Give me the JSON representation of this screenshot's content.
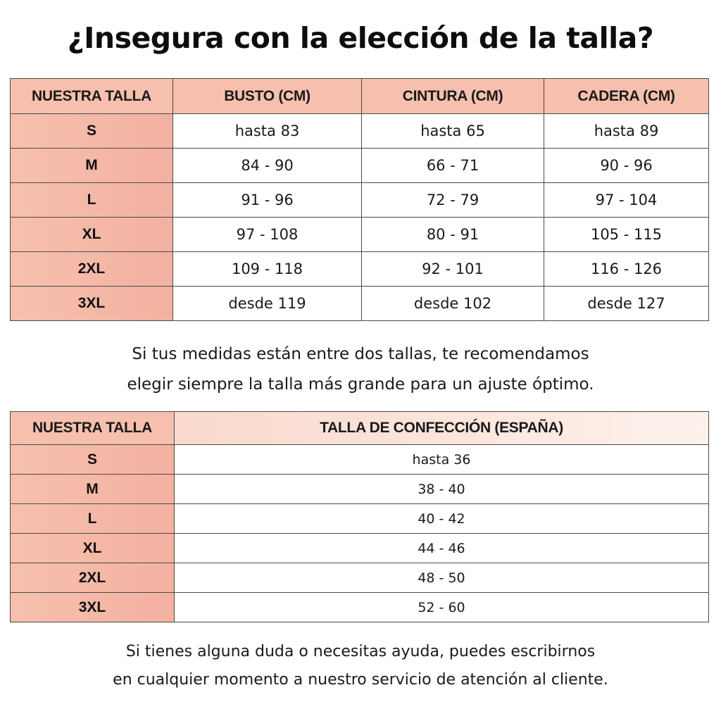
{
  "title": "¿Insegura con la elección de la talla?",
  "measurements_table": {
    "headers": [
      "NUESTRA TALLA",
      "BUSTO (CM)",
      "CINTURA (CM)",
      "CADERA (CM)"
    ],
    "rows": [
      {
        "size": "S",
        "busto": "hasta 83",
        "cintura": "hasta 65",
        "cadera": "hasta 89"
      },
      {
        "size": "M",
        "busto": "84 - 90",
        "cintura": "66 - 71",
        "cadera": "90 - 96"
      },
      {
        "size": "L",
        "busto": "91 - 96",
        "cintura": "72 - 79",
        "cadera": "97 - 104"
      },
      {
        "size": "XL",
        "busto": "97 - 108",
        "cintura": "80 - 91",
        "cadera": "105 - 115"
      },
      {
        "size": "2XL",
        "busto": "109 - 118",
        "cintura": "92 - 101",
        "cadera": "116 - 126"
      },
      {
        "size": "3XL",
        "busto": "desde 119",
        "cintura": "desde 102",
        "cadera": "desde 127"
      }
    ]
  },
  "recommendation": {
    "line1": "Si tus medidas están entre dos tallas, te recomendamos",
    "line2": "elegir siempre la talla más grande para un ajuste óptimo."
  },
  "conversion_table": {
    "headers": [
      "NUESTRA TALLA",
      "TALLA DE CONFECCIÓN (ESPAÑA)"
    ],
    "rows": [
      {
        "size": "S",
        "spain": "hasta 36"
      },
      {
        "size": "M",
        "spain": "38 - 40"
      },
      {
        "size": "L",
        "spain": "40 - 42"
      },
      {
        "size": "XL",
        "spain": "44 - 46"
      },
      {
        "size": "2XL",
        "spain": "48 - 50"
      },
      {
        "size": "3XL",
        "spain": "52 - 60"
      }
    ]
  },
  "help": {
    "line1": "Si tienes alguna duda o necesitas ayuda, puedes escribirnos",
    "line2": "en cualquier momento a nuestro servicio de atención al cliente."
  },
  "colors": {
    "header_fill": "#f7bfae",
    "size_cell_fill": "#f3b1a0",
    "border": "#4a4a4a"
  }
}
